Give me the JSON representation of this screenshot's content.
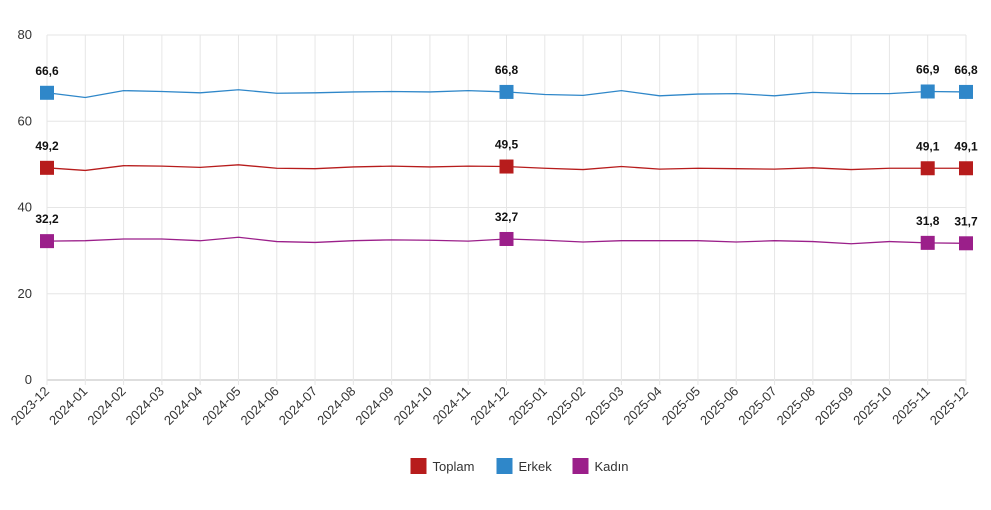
{
  "chart_data": {
    "type": "line",
    "title": "",
    "xlabel": "",
    "ylabel": "",
    "ylim": [
      0,
      80
    ],
    "yticks": [
      0,
      20,
      40,
      60,
      80
    ],
    "grid": true,
    "legend_position": "bottom-center",
    "x": [
      "2023-12",
      "2024-01",
      "2024-02",
      "2024-03",
      "2024-04",
      "2024-05",
      "2024-06",
      "2024-07",
      "2024-08",
      "2024-09",
      "2024-10",
      "2024-11",
      "2024-12",
      "2025-01",
      "2025-02",
      "2025-03",
      "2025-04",
      "2025-05",
      "2025-06",
      "2025-07",
      "2025-08",
      "2025-09",
      "2025-10",
      "2025-11",
      "2025-12"
    ],
    "series": [
      {
        "name": "Toplam",
        "color": "#b71c1c",
        "values": [
          49.2,
          48.6,
          49.7,
          49.6,
          49.3,
          49.9,
          49.1,
          49.0,
          49.4,
          49.6,
          49.4,
          49.6,
          49.5,
          49.1,
          48.8,
          49.5,
          48.9,
          49.1,
          49.0,
          48.9,
          49.2,
          48.8,
          49.1,
          49.1,
          49.1
        ],
        "labels": [
          {
            "index": 0,
            "text": "49,2"
          },
          {
            "index": 12,
            "text": "49,5"
          },
          {
            "index": 23,
            "text": "49,1"
          },
          {
            "index": 24,
            "text": "49,1"
          }
        ]
      },
      {
        "name": "Erkek",
        "color": "#2f87c9",
        "values": [
          66.6,
          65.5,
          67.1,
          66.9,
          66.6,
          67.3,
          66.5,
          66.6,
          66.8,
          66.9,
          66.8,
          67.1,
          66.8,
          66.2,
          66.0,
          67.1,
          65.9,
          66.3,
          66.4,
          65.9,
          66.7,
          66.4,
          66.4,
          66.9,
          66.8
        ],
        "labels": [
          {
            "index": 0,
            "text": "66,6"
          },
          {
            "index": 12,
            "text": "66,8"
          },
          {
            "index": 23,
            "text": "66,9"
          },
          {
            "index": 24,
            "text": "66,8"
          }
        ]
      },
      {
        "name": "Kadın",
        "color": "#9b1f8a",
        "values": [
          32.2,
          32.3,
          32.7,
          32.7,
          32.3,
          33.1,
          32.1,
          31.9,
          32.3,
          32.5,
          32.4,
          32.2,
          32.7,
          32.4,
          32.0,
          32.3,
          32.3,
          32.3,
          32.0,
          32.3,
          32.1,
          31.6,
          32.1,
          31.8,
          31.7
        ],
        "labels": [
          {
            "index": 0,
            "text": "32,2"
          },
          {
            "index": 12,
            "text": "32,7"
          },
          {
            "index": 23,
            "text": "31,8"
          },
          {
            "index": 24,
            "text": "31,7"
          }
        ]
      }
    ]
  }
}
